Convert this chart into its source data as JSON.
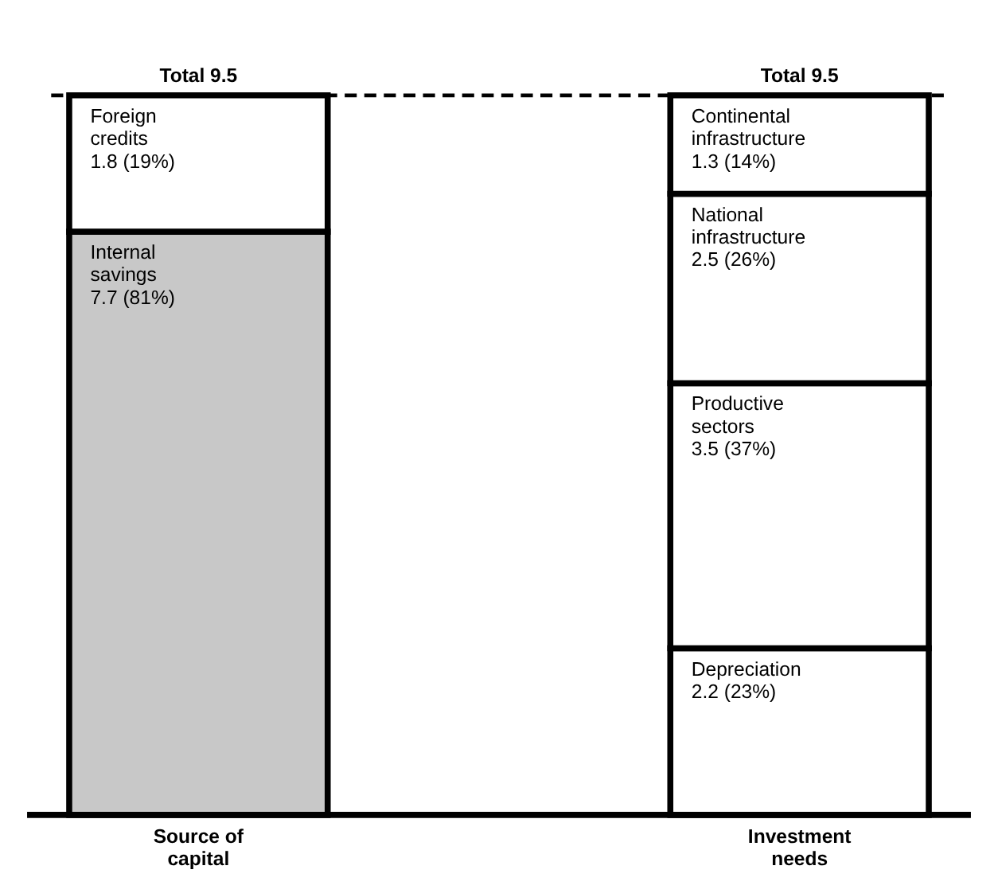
{
  "chart_data": {
    "type": "bar",
    "stacked": true,
    "categories": [
      "Source of capital",
      "Investment needs"
    ],
    "series": [
      {
        "name": "Internal savings",
        "color": "#c8c8c8",
        "values": [
          7.7,
          null
        ],
        "value_labels": [
          "7.7 (81%)",
          null
        ]
      },
      {
        "name": "Foreign credits",
        "color": "#ffffff",
        "values": [
          1.8,
          null
        ],
        "value_labels": [
          "1.8 (19%)",
          null
        ]
      },
      {
        "name": "Depreciation",
        "color": "#ffffff",
        "values": [
          null,
          2.2
        ],
        "value_labels": [
          null,
          "2.2 (23%)"
        ]
      },
      {
        "name": "Productive sectors",
        "color": "#ffffff",
        "values": [
          null,
          3.5
        ],
        "value_labels": [
          null,
          "3.5 (37%)"
        ]
      },
      {
        "name": "National infrastructure",
        "color": "#ffffff",
        "values": [
          null,
          2.5
        ],
        "value_labels": [
          null,
          "2.5 (26%)"
        ]
      },
      {
        "name": "Continental infrastructure",
        "color": "#ffffff",
        "values": [
          null,
          1.3
        ],
        "value_labels": [
          null,
          "1.3 (14%)"
        ]
      }
    ],
    "totals": [
      "Total 9.5",
      "Total 9.5"
    ],
    "ref_lines": [
      {
        "axis": "y",
        "value": 9.5,
        "line_style": "dashed",
        "color": "#000000"
      }
    ]
  }
}
